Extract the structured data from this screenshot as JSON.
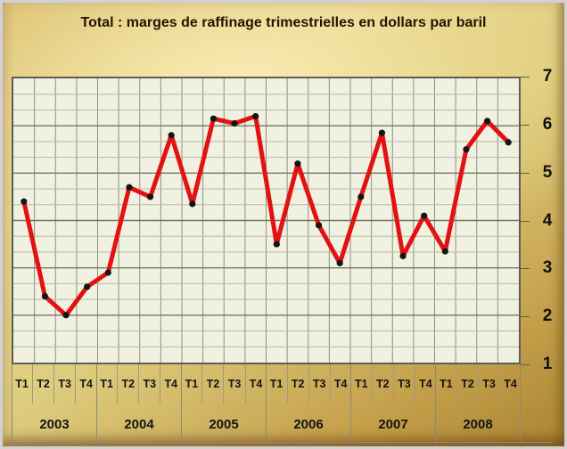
{
  "title": "Total : marges de raffinage trimestrielles en dollars par baril",
  "colors": {
    "gold_light": "#eedd9b",
    "gold_dark": "#b38f3c",
    "plot_background": "#f0f1e1",
    "grid_minor": "#b7b8a6",
    "grid_major": "#757667",
    "grid_vertical": "#8f9081",
    "plot_border": "#5d5e52",
    "axis_line": "#8a8a7d",
    "line": "#e31212",
    "marker": "#151515",
    "title_text": "#241303",
    "tick_text": "#111111"
  },
  "y_axis": {
    "tick_labels": [
      "7",
      "6",
      "5",
      "4",
      "3",
      "2",
      "1"
    ]
  },
  "chart_data": {
    "type": "line",
    "title": "Total : marges de raffinage trimestrielles en dollars par baril",
    "years": [
      "2003",
      "2004",
      "2005",
      "2006",
      "2007",
      "2008"
    ],
    "quarters": [
      "T1",
      "T2",
      "T3",
      "T4"
    ],
    "values": [
      4.4,
      2.4,
      2.0,
      2.6,
      2.9,
      4.7,
      4.5,
      5.8,
      4.35,
      6.15,
      6.05,
      6.2,
      3.5,
      5.2,
      3.9,
      3.1,
      4.5,
      5.85,
      3.25,
      4.1,
      3.35,
      5.5,
      6.1,
      5.65
    ],
    "ylim": [
      1,
      7
    ],
    "y_major_step": 1,
    "y_minor_divisions_per_unit": 3,
    "grid": true,
    "legend_position": "none",
    "line_color": "#e31212",
    "marker_color": "#151515"
  }
}
